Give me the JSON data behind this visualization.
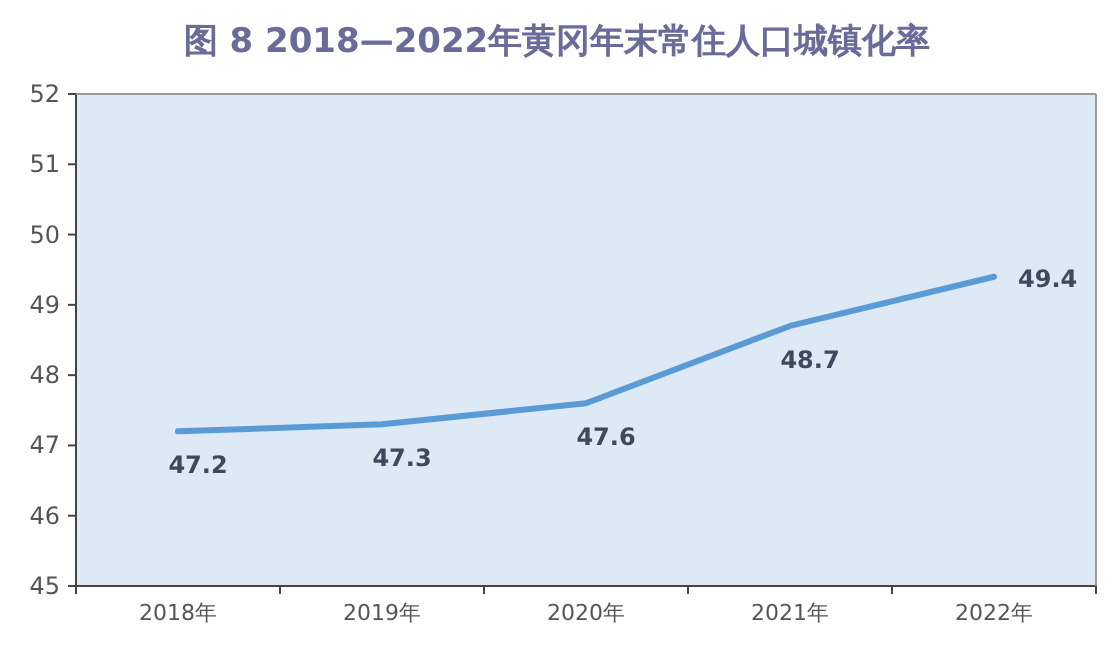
{
  "chart_data": {
    "type": "line",
    "title": "图 8  2018—2022年黄冈年末常住人口城镇化率",
    "categories": [
      "2018年",
      "2019年",
      "2020年",
      "2021年",
      "2022年"
    ],
    "series": [
      {
        "color": "#5b9bd5",
        "values": [
          47.2,
          47.3,
          47.6,
          48.7,
          49.4
        ]
      }
    ],
    "ylim": [
      45,
      52
    ],
    "yticks": [
      45,
      46,
      47,
      48,
      49,
      50,
      51,
      52
    ],
    "data_labels": true,
    "grid": false
  }
}
